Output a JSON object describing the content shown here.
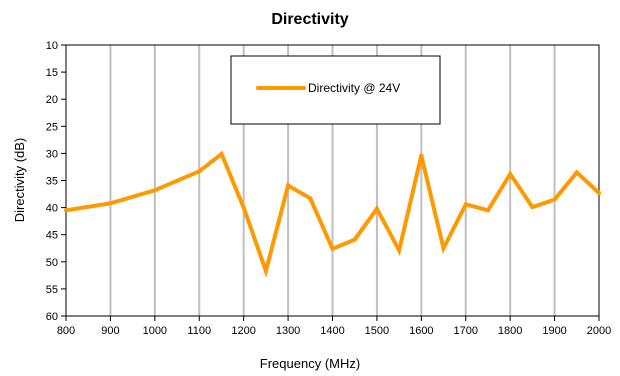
{
  "chart_data": {
    "type": "line",
    "title": "Directivity",
    "xlabel": "Frequency (MHz)",
    "ylabel": "Directivity (dB)",
    "xlim": [
      800,
      2000
    ],
    "ylim": [
      10,
      60
    ],
    "y_reversed": true,
    "x_ticks": [
      800,
      900,
      1000,
      1100,
      1200,
      1300,
      1400,
      1500,
      1600,
      1700,
      1800,
      1900,
      2000
    ],
    "y_ticks": [
      10,
      15,
      20,
      25,
      30,
      35,
      40,
      45,
      50,
      55,
      60
    ],
    "grid": "vertical",
    "legend_position": "top-center",
    "series": [
      {
        "name": "Directivity @  24V",
        "color": "#FF9900",
        "x": [
          800,
          900,
          1000,
          1100,
          1150,
          1200,
          1250,
          1300,
          1350,
          1400,
          1450,
          1500,
          1550,
          1600,
          1650,
          1700,
          1750,
          1800,
          1850,
          1900,
          1950,
          2000
        ],
        "y": [
          40.5,
          39.2,
          36.8,
          33.3,
          30.1,
          40.0,
          51.7,
          35.9,
          38.3,
          47.6,
          45.9,
          40.2,
          47.9,
          30.4,
          47.5,
          39.4,
          40.5,
          33.8,
          39.9,
          38.5,
          33.5,
          37.3
        ]
      }
    ]
  }
}
